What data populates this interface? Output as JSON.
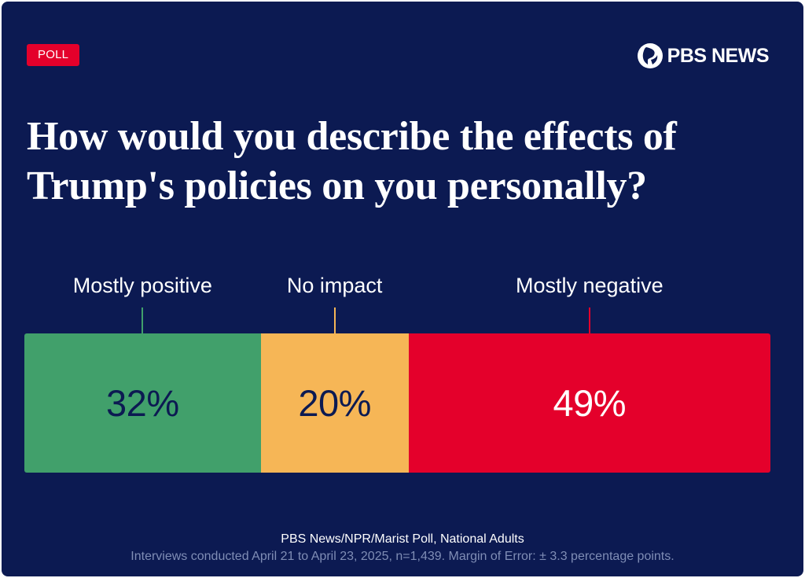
{
  "badge": "POLL",
  "brand": {
    "name": "PBS NEWS"
  },
  "title": "How would you describe the effects of Trump's policies on you personally?",
  "colors": {
    "background": "#0c1a52",
    "badge": "#e4002b",
    "positive": "#41a06b",
    "neutral": "#f6b656",
    "negative": "#e4002b",
    "dark_text": "#0c1a52",
    "light_text": "#ffffff"
  },
  "chart_data": {
    "type": "bar",
    "orientation": "horizontal-stacked",
    "title": "How would you describe the effects of Trump's policies on you personally?",
    "categories": [
      "Mostly positive",
      "No impact",
      "Mostly negative"
    ],
    "values": [
      32,
      20,
      49
    ],
    "value_labels": [
      "32%",
      "20%",
      "49%"
    ],
    "unit": "%",
    "series_colors": [
      "#41a06b",
      "#f6b656",
      "#e4002b"
    ],
    "label_colors": [
      "#0c1a52",
      "#0c1a52",
      "#ffffff"
    ],
    "legend": "above-bars"
  },
  "footer": {
    "source": "PBS News/NPR/Marist Poll, National Adults",
    "note": "Interviews conducted April 21 to April 23, 2025, n=1,439. Margin of Error: ± 3.3 percentage points."
  }
}
